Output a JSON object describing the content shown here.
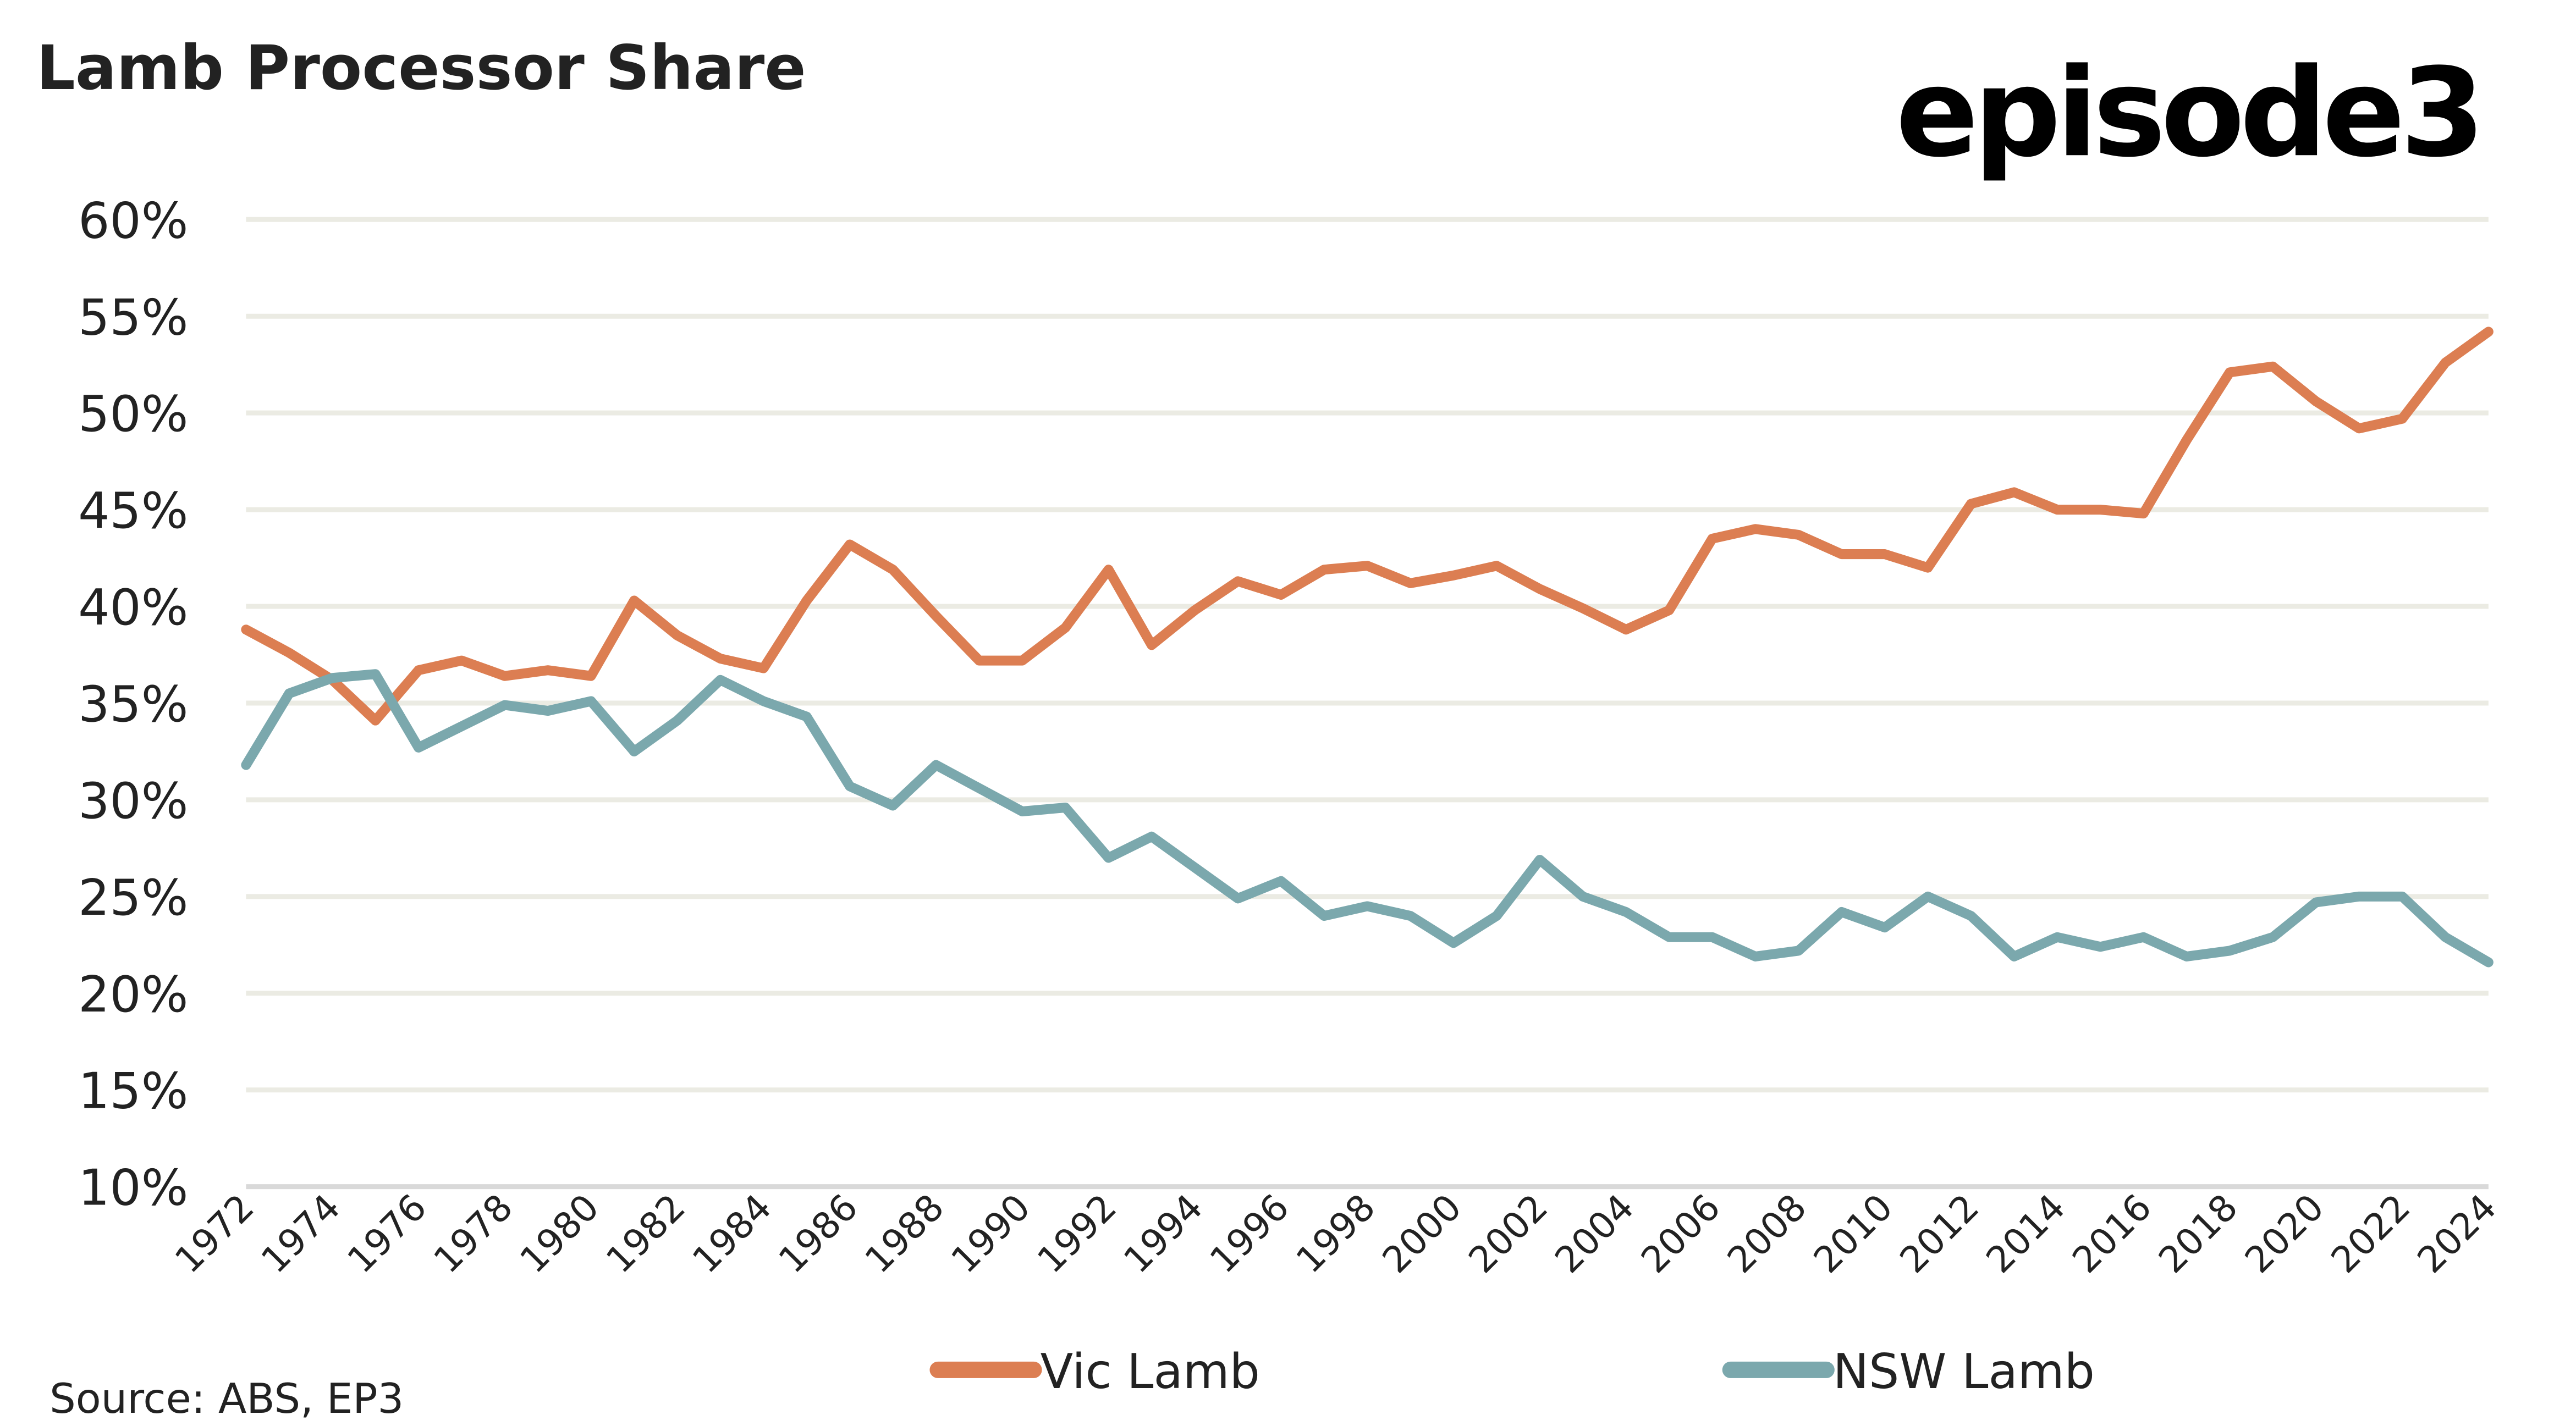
{
  "logo_text": "episode3",
  "source_text": "Source: ABS, EP3",
  "colors": {
    "vic": "#dc7e52",
    "nsw": "#7ba8ad",
    "grid": "#ebebe3",
    "text": "#222222"
  },
  "chart_data": {
    "type": "line",
    "title": "Lamb Processor Share",
    "xlabel": "",
    "ylabel": "",
    "ylim": [
      10,
      60
    ],
    "yticks": [
      60,
      55,
      50,
      45,
      40,
      35,
      30,
      25,
      20,
      15,
      10
    ],
    "ytick_labels": [
      "60%",
      "55%",
      "50%",
      "45%",
      "40%",
      "35%",
      "30%",
      "25%",
      "20%",
      "15%",
      "10%"
    ],
    "x": [
      1972,
      1973,
      1974,
      1975,
      1976,
      1977,
      1978,
      1979,
      1980,
      1981,
      1982,
      1983,
      1984,
      1985,
      1986,
      1987,
      1988,
      1989,
      1990,
      1991,
      1992,
      1993,
      1994,
      1995,
      1996,
      1997,
      1998,
      1999,
      2000,
      2001,
      2002,
      2003,
      2004,
      2005,
      2006,
      2007,
      2008,
      2009,
      2010,
      2011,
      2012,
      2013,
      2014,
      2015,
      2016,
      2017,
      2018,
      2019,
      2020,
      2021,
      2022,
      2023,
      2024
    ],
    "xtick_labels": [
      "1972",
      "1974",
      "1976",
      "1978",
      "1980",
      "1982",
      "1984",
      "1986",
      "1988",
      "1990",
      "1992",
      "1994",
      "1996",
      "1998",
      "2000",
      "2002",
      "2004",
      "2006",
      "2008",
      "2010",
      "2012",
      "2014",
      "2016",
      "2018",
      "2020",
      "2022",
      "2024"
    ],
    "grid": true,
    "legend_position": "bottom",
    "series": [
      {
        "name": "Vic Lamb",
        "color": "#dc7e52",
        "values": [
          38.8,
          37.6,
          36.2,
          34.1,
          36.7,
          37.2,
          36.4,
          36.7,
          36.4,
          40.3,
          38.5,
          37.3,
          36.8,
          40.3,
          43.2,
          41.9,
          39.5,
          37.2,
          37.2,
          38.9,
          41.9,
          38.0,
          39.8,
          41.3,
          40.6,
          41.9,
          42.1,
          41.2,
          41.6,
          42.1,
          40.9,
          39.9,
          38.8,
          39.8,
          43.5,
          44.0,
          43.7,
          42.7,
          42.7,
          42.0,
          45.3,
          45.9,
          45.0,
          45.0,
          44.8,
          48.6,
          52.1,
          52.4,
          50.6,
          49.2,
          49.7,
          52.6,
          54.2
        ]
      },
      {
        "name": "NSW Lamb",
        "color": "#7ba8ad",
        "values": [
          31.8,
          35.5,
          36.3,
          36.5,
          32.7,
          33.8,
          34.9,
          34.6,
          35.1,
          32.5,
          34.1,
          36.2,
          35.1,
          34.3,
          30.7,
          29.7,
          31.8,
          30.6,
          29.4,
          29.6,
          27.0,
          28.1,
          26.5,
          24.9,
          25.8,
          24.0,
          24.5,
          24.0,
          22.6,
          24.0,
          26.9,
          25.0,
          24.2,
          22.9,
          22.9,
          21.9,
          22.2,
          24.2,
          23.4,
          25.0,
          24.0,
          21.9,
          22.9,
          22.4,
          22.9,
          21.9,
          22.2,
          22.9,
          24.7,
          25.0,
          25.0,
          22.9,
          21.6
        ]
      }
    ]
  }
}
